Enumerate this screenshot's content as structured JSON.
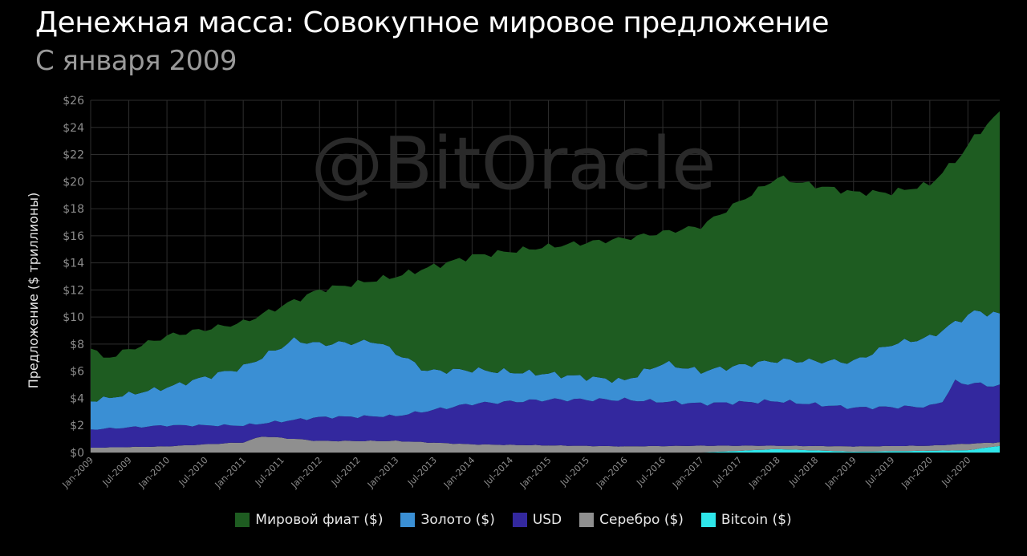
{
  "header": {
    "title": "Денежная масса: Совокупное мировое предложение",
    "subtitle": "С января 2009"
  },
  "watermark": "@BitOracle",
  "colors": {
    "background": "#000000",
    "grid": "#2e2e2e",
    "axis_text": "#8c8c8c",
    "fiat": "#1e5c21",
    "gold": "#3a8fd4",
    "usd": "#33289e",
    "silver": "#8f8f8f",
    "bitcoin": "#2ee6ea"
  },
  "chart_data": {
    "type": "area",
    "stacked": true,
    "ylabel": "Предложение ($ триллионы)",
    "ylim": [
      0,
      26
    ],
    "yticks": [
      "$0",
      "$2",
      "$4",
      "$6",
      "$8",
      "$10",
      "$12",
      "$14",
      "$16",
      "$18",
      "$20",
      "$22",
      "$24",
      "$26"
    ],
    "xticks": [
      "Jan-2009",
      "Jul-2009",
      "Jan-2010",
      "Jul-2010",
      "Jan-2011",
      "Jul-2011",
      "Jan-2012",
      "Jul-2012",
      "Jan-2013",
      "Jul-2013",
      "Jan-2014",
      "Jul-2014",
      "Jan-2015",
      "Jul-2015",
      "Jan-2016",
      "Jul-2016",
      "Jan-2017",
      "Jul-2017",
      "Jan-2018",
      "Jul-2018",
      "Jan-2019",
      "Jul-2019",
      "Jan-2020",
      "Jul-2020"
    ],
    "x_start": "Jan-2009",
    "x_end": "Dec-2020",
    "grid": true,
    "legend_position": "bottom-center",
    "series": [
      {
        "name": "Bitcoin ($)",
        "key": "bitcoin",
        "x_sample": [
          "Jan-2009",
          "Jan-2017",
          "Jan-2018",
          "Jan-2019",
          "Jan-2020",
          "Jul-2020",
          "Dec-2020"
        ],
        "total_at": [
          0.0,
          0.0,
          0.25,
          0.06,
          0.13,
          0.17,
          0.5
        ]
      },
      {
        "name": "Серебро ($)",
        "key": "silver",
        "x_sample": [
          "Jan-2009",
          "Jan-2010",
          "Jan-2011",
          "Apr-2011",
          "Jan-2012",
          "Jan-2013",
          "Jan-2014",
          "Jan-2016",
          "Jan-2017",
          "Jan-2018",
          "Jan-2019",
          "Jan-2020",
          "Jul-2020",
          "Dec-2020"
        ],
        "total_at": [
          0.35,
          0.45,
          0.75,
          1.2,
          0.85,
          0.85,
          0.6,
          0.45,
          0.5,
          0.5,
          0.45,
          0.5,
          0.65,
          0.75
        ]
      },
      {
        "name": "USD",
        "key": "usd",
        "x_sample": [
          "Jan-2009",
          "Jan-2010",
          "Jan-2011",
          "Jan-2012",
          "Jan-2013",
          "Jan-2014",
          "Jan-2015",
          "Jan-2016",
          "Jan-2017",
          "Jan-2018",
          "Jan-2019",
          "Jan-2020",
          "Mar-2020",
          "May-2020",
          "Dec-2020"
        ],
        "total_at": [
          1.7,
          2.0,
          2.0,
          2.6,
          2.7,
          3.6,
          3.9,
          3.9,
          3.6,
          3.8,
          3.3,
          3.4,
          3.8,
          5.2,
          4.9
        ]
      },
      {
        "name": "Золото ($)",
        "key": "gold",
        "x_sample": [
          "Jan-2009",
          "Jan-2010",
          "Jan-2011",
          "Sep-2011",
          "Jan-2012",
          "Oct-2012",
          "Jun-2013",
          "Jan-2014",
          "Jan-2015",
          "Jan-2016",
          "Jul-2016",
          "Jan-2017",
          "Jan-2018",
          "Jan-2019",
          "Jul-2019",
          "Jan-2020",
          "Aug-2020",
          "Dec-2020"
        ],
        "total_at": [
          3.8,
          4.8,
          6.3,
          8.3,
          8.0,
          8.2,
          6.0,
          6.1,
          5.8,
          5.3,
          6.6,
          6.0,
          6.8,
          6.7,
          8.0,
          8.5,
          10.4,
          10.2
        ]
      },
      {
        "name": "Мировой фиат ($)",
        "key": "fiat",
        "x_sample": [
          "Jan-2009",
          "Mar-2009",
          "Jan-2010",
          "Jan-2011",
          "Jan-2012",
          "Jan-2013",
          "Jan-2014",
          "Jan-2015",
          "Jan-2016",
          "Jan-2017",
          "Jan-2018",
          "Jun-2018",
          "Jan-2019",
          "Jul-2019",
          "Jan-2020",
          "Jun-2020",
          "Aug-2020",
          "Dec-2020"
        ],
        "total_at": [
          7.9,
          6.9,
          8.6,
          9.6,
          12.0,
          13.0,
          14.5,
          15.2,
          15.8,
          16.7,
          20.3,
          19.8,
          19.2,
          19.2,
          19.8,
          22.0,
          23.3,
          25.1
        ]
      }
    ]
  },
  "legend": [
    {
      "label": "Мировой фиат ($)",
      "key": "fiat"
    },
    {
      "label": "Золото ($)",
      "key": "gold"
    },
    {
      "label": "USD",
      "key": "usd"
    },
    {
      "label": "Серебро ($)",
      "key": "silver"
    },
    {
      "label": "Bitcoin ($)",
      "key": "bitcoin"
    }
  ]
}
